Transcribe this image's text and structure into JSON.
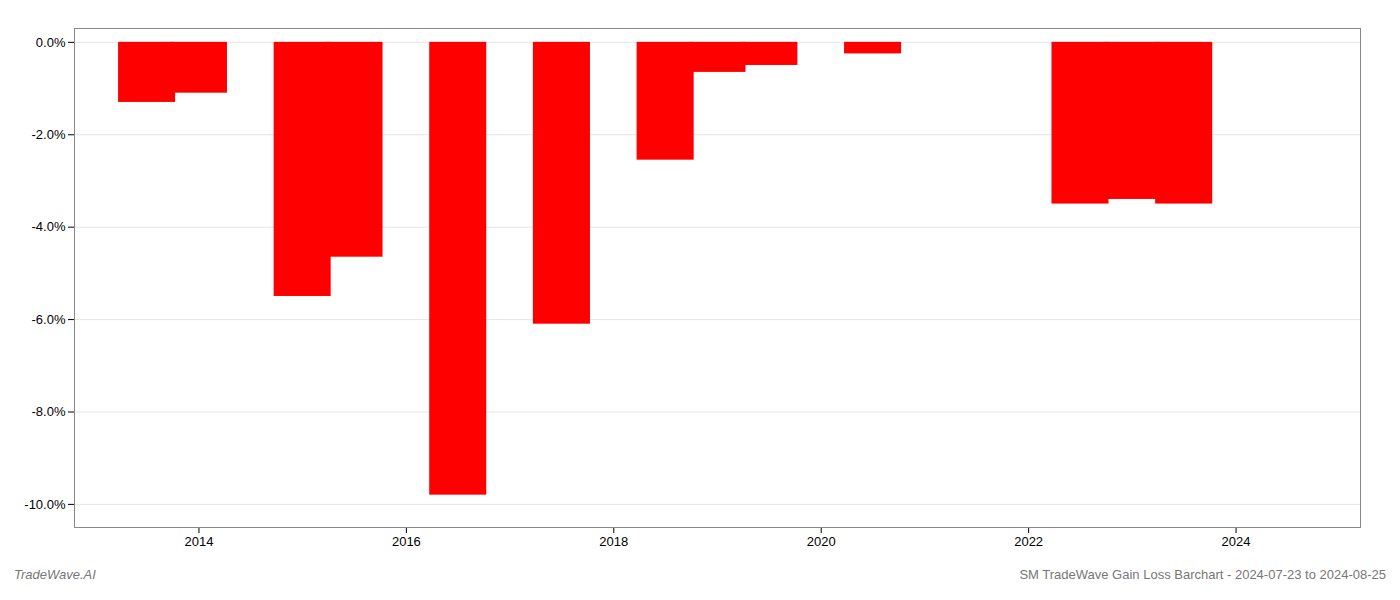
{
  "chart_data": {
    "type": "bar",
    "x": [
      2013.5,
      2014.0,
      2015.0,
      2015.5,
      2016.5,
      2017.5,
      2018.5,
      2019.0,
      2019.5,
      2020.5,
      2022.5,
      2023.0,
      2023.5
    ],
    "values": [
      -1.3,
      -1.1,
      -5.5,
      -4.65,
      -9.8,
      -6.1,
      -2.55,
      -0.65,
      -0.5,
      -0.25,
      -3.5,
      -3.4,
      -3.5
    ],
    "color": "#ff0000",
    "xlim": [
      2012.8,
      2025.2
    ],
    "xticks": [
      2014,
      2016,
      2018,
      2020,
      2022,
      2024
    ],
    "ylim": [
      -10.5,
      0.3
    ],
    "yticks": [
      {
        "value": 0.0,
        "label": "0.0%"
      },
      {
        "value": -2.0,
        "label": "-2.0%"
      },
      {
        "value": -4.0,
        "label": "-4.0%"
      },
      {
        "value": -6.0,
        "label": "-6.0%"
      },
      {
        "value": -8.0,
        "label": "-8.0%"
      },
      {
        "value": -10.0,
        "label": "-10.0%"
      }
    ],
    "grid": true,
    "annotations": [
      "TradeWave.AI",
      "SM TradeWave Gain Loss Barchart - 2024-07-23 to 2024-08-25"
    ]
  }
}
